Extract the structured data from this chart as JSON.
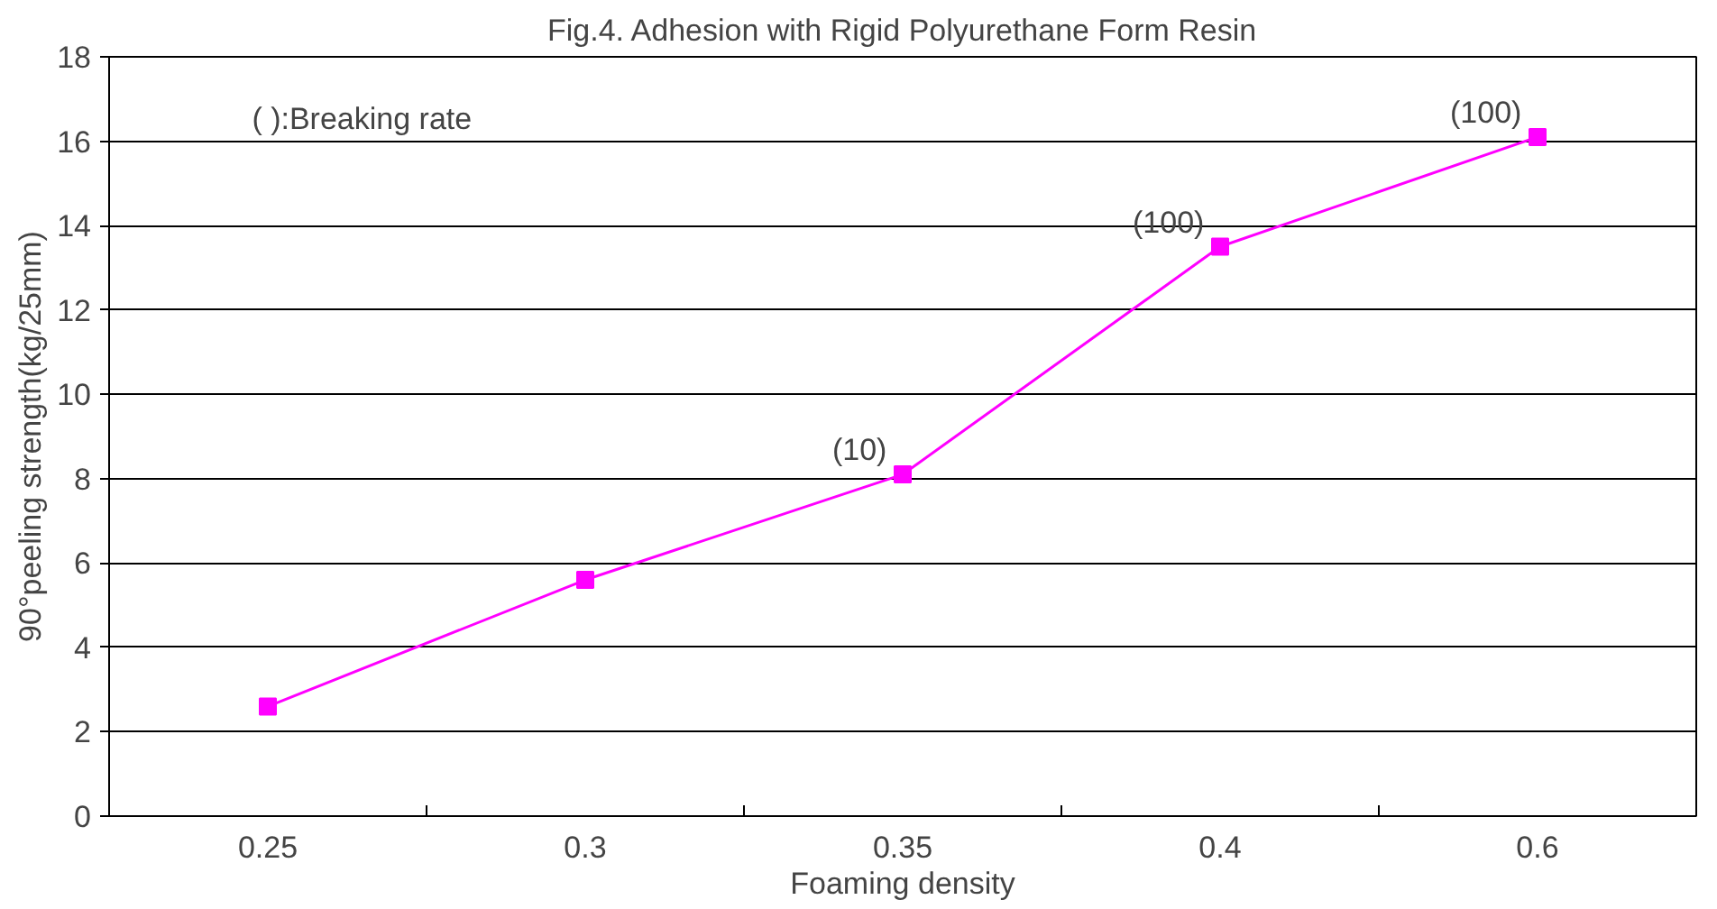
{
  "chart_data": {
    "type": "line",
    "title": "Fig.4. Adhesion with Rigid Polyurethane Form Resin",
    "xlabel": "Foaming density",
    "ylabel": "90°peeling strength(kg/25mm)",
    "categories": [
      "0.25",
      "0.3",
      "0.35",
      "0.4",
      "0.6"
    ],
    "series": [
      {
        "color": "#ff00ff",
        "values": [
          2.6,
          5.6,
          8.1,
          13.5,
          16.1
        ]
      }
    ],
    "ylim": [
      0,
      18
    ],
    "yticks": [
      0,
      2,
      4,
      6,
      8,
      10,
      12,
      14,
      16,
      18
    ],
    "grid": "y",
    "marker": "square",
    "line_style": "solid",
    "annotations": [
      "( ):Breaking rate",
      {
        "text": "(10)",
        "x": "0.35",
        "y": 8.1
      },
      {
        "text": "(100)",
        "x": "0.4",
        "y": 13.5
      },
      {
        "text": "(100)",
        "x": "0.6",
        "y": 16.1
      }
    ]
  }
}
